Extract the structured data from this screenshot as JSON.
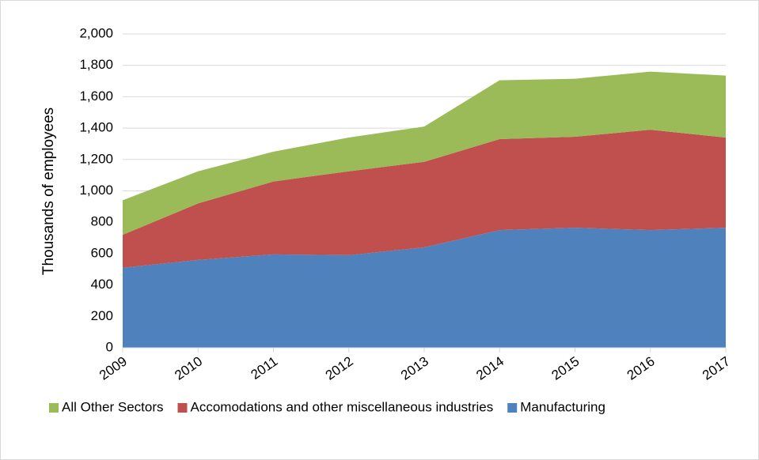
{
  "chart_data": {
    "type": "stacked_area",
    "y_label": "Thousands of employees",
    "categories": [
      "2009",
      "2010",
      "2011",
      "2012",
      "2013",
      "2014",
      "2015",
      "2016",
      "2017"
    ],
    "series": [
      {
        "name": "All Other Sectors",
        "color": "#9bbb59",
        "values": [
          220,
          205,
          190,
          215,
          225,
          375,
          370,
          370,
          395
        ]
      },
      {
        "name": "Accomodations and other miscellaneous industries",
        "color": "#c0504d",
        "values": [
          210,
          360,
          465,
          535,
          545,
          580,
          580,
          640,
          575
        ]
      },
      {
        "name": "Manufacturing",
        "color": "#4f81bd",
        "values": [
          510,
          560,
          595,
          590,
          640,
          750,
          765,
          750,
          765
        ]
      }
    ],
    "ylim": [
      0,
      2000
    ],
    "yticks": [
      0,
      200,
      400,
      600,
      800,
      {
        "value": 1000,
        "label": "1,000"
      },
      {
        "value": 1200,
        "label": "1,200"
      },
      {
        "value": 1400,
        "label": "1,400"
      },
      {
        "value": 1600,
        "label": "1,600"
      },
      {
        "value": 1800,
        "label": "1,800"
      },
      {
        "value": 2000,
        "label": "2,000"
      }
    ],
    "grid": true,
    "legend": "bottom"
  }
}
